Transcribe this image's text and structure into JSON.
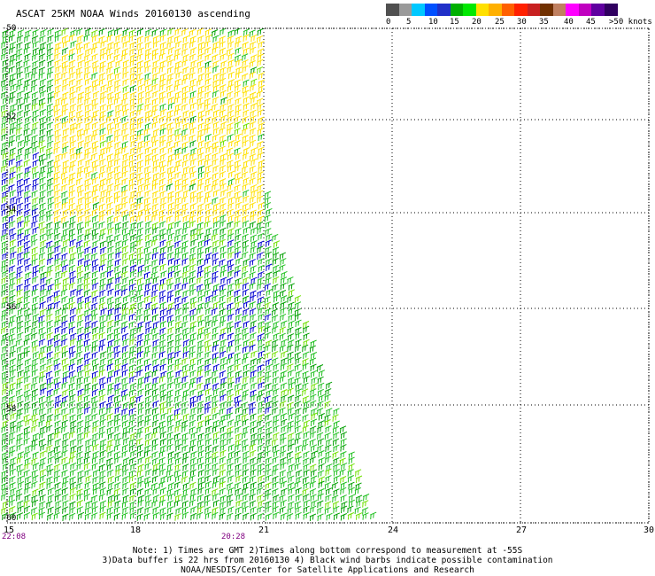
{
  "title": "ASCAT 25KM NOAA Winds 20160130 ascending",
  "legend": {
    "colors": [
      "#505050",
      "#9a9a9a",
      "#00c8ff",
      "#0050ff",
      "#2030c8",
      "#00b000",
      "#00e800",
      "#ffe000",
      "#ffb000",
      "#ff6000",
      "#ff2000",
      "#c82020",
      "#703000",
      "#c08060",
      "#ff00ff",
      "#c000c0",
      "#6000a0",
      "#300060"
    ],
    "labels": [
      "0",
      "5",
      "10",
      "15",
      "20",
      "25",
      "30",
      "35",
      "40",
      "45",
      ">50 knots"
    ]
  },
  "lon_ticks": [
    "15",
    "18",
    "21",
    "24",
    "27",
    "30"
  ],
  "lat_ticks": [
    "-50",
    "-52",
    "-54",
    "-56",
    "-58",
    "-60"
  ],
  "time_labels": [
    "22:08",
    "20:28"
  ],
  "notes": [
    "Note: 1) Times are GMT 2)Times along bottom correspond to measurement at -55S",
    "3)Data buffer is 22 hrs from 20160130 4) Black wind barbs indicate possible contamination",
    "NOAA/NESDIS/Center for Satellite Applications and Research"
  ],
  "wind_colors": {
    "calm": "#000080",
    "light": "#0000d0",
    "moderate_dark": "#00a000",
    "moderate": "#20c020",
    "fresh": "#70e000",
    "strong": "#ffe000"
  }
}
